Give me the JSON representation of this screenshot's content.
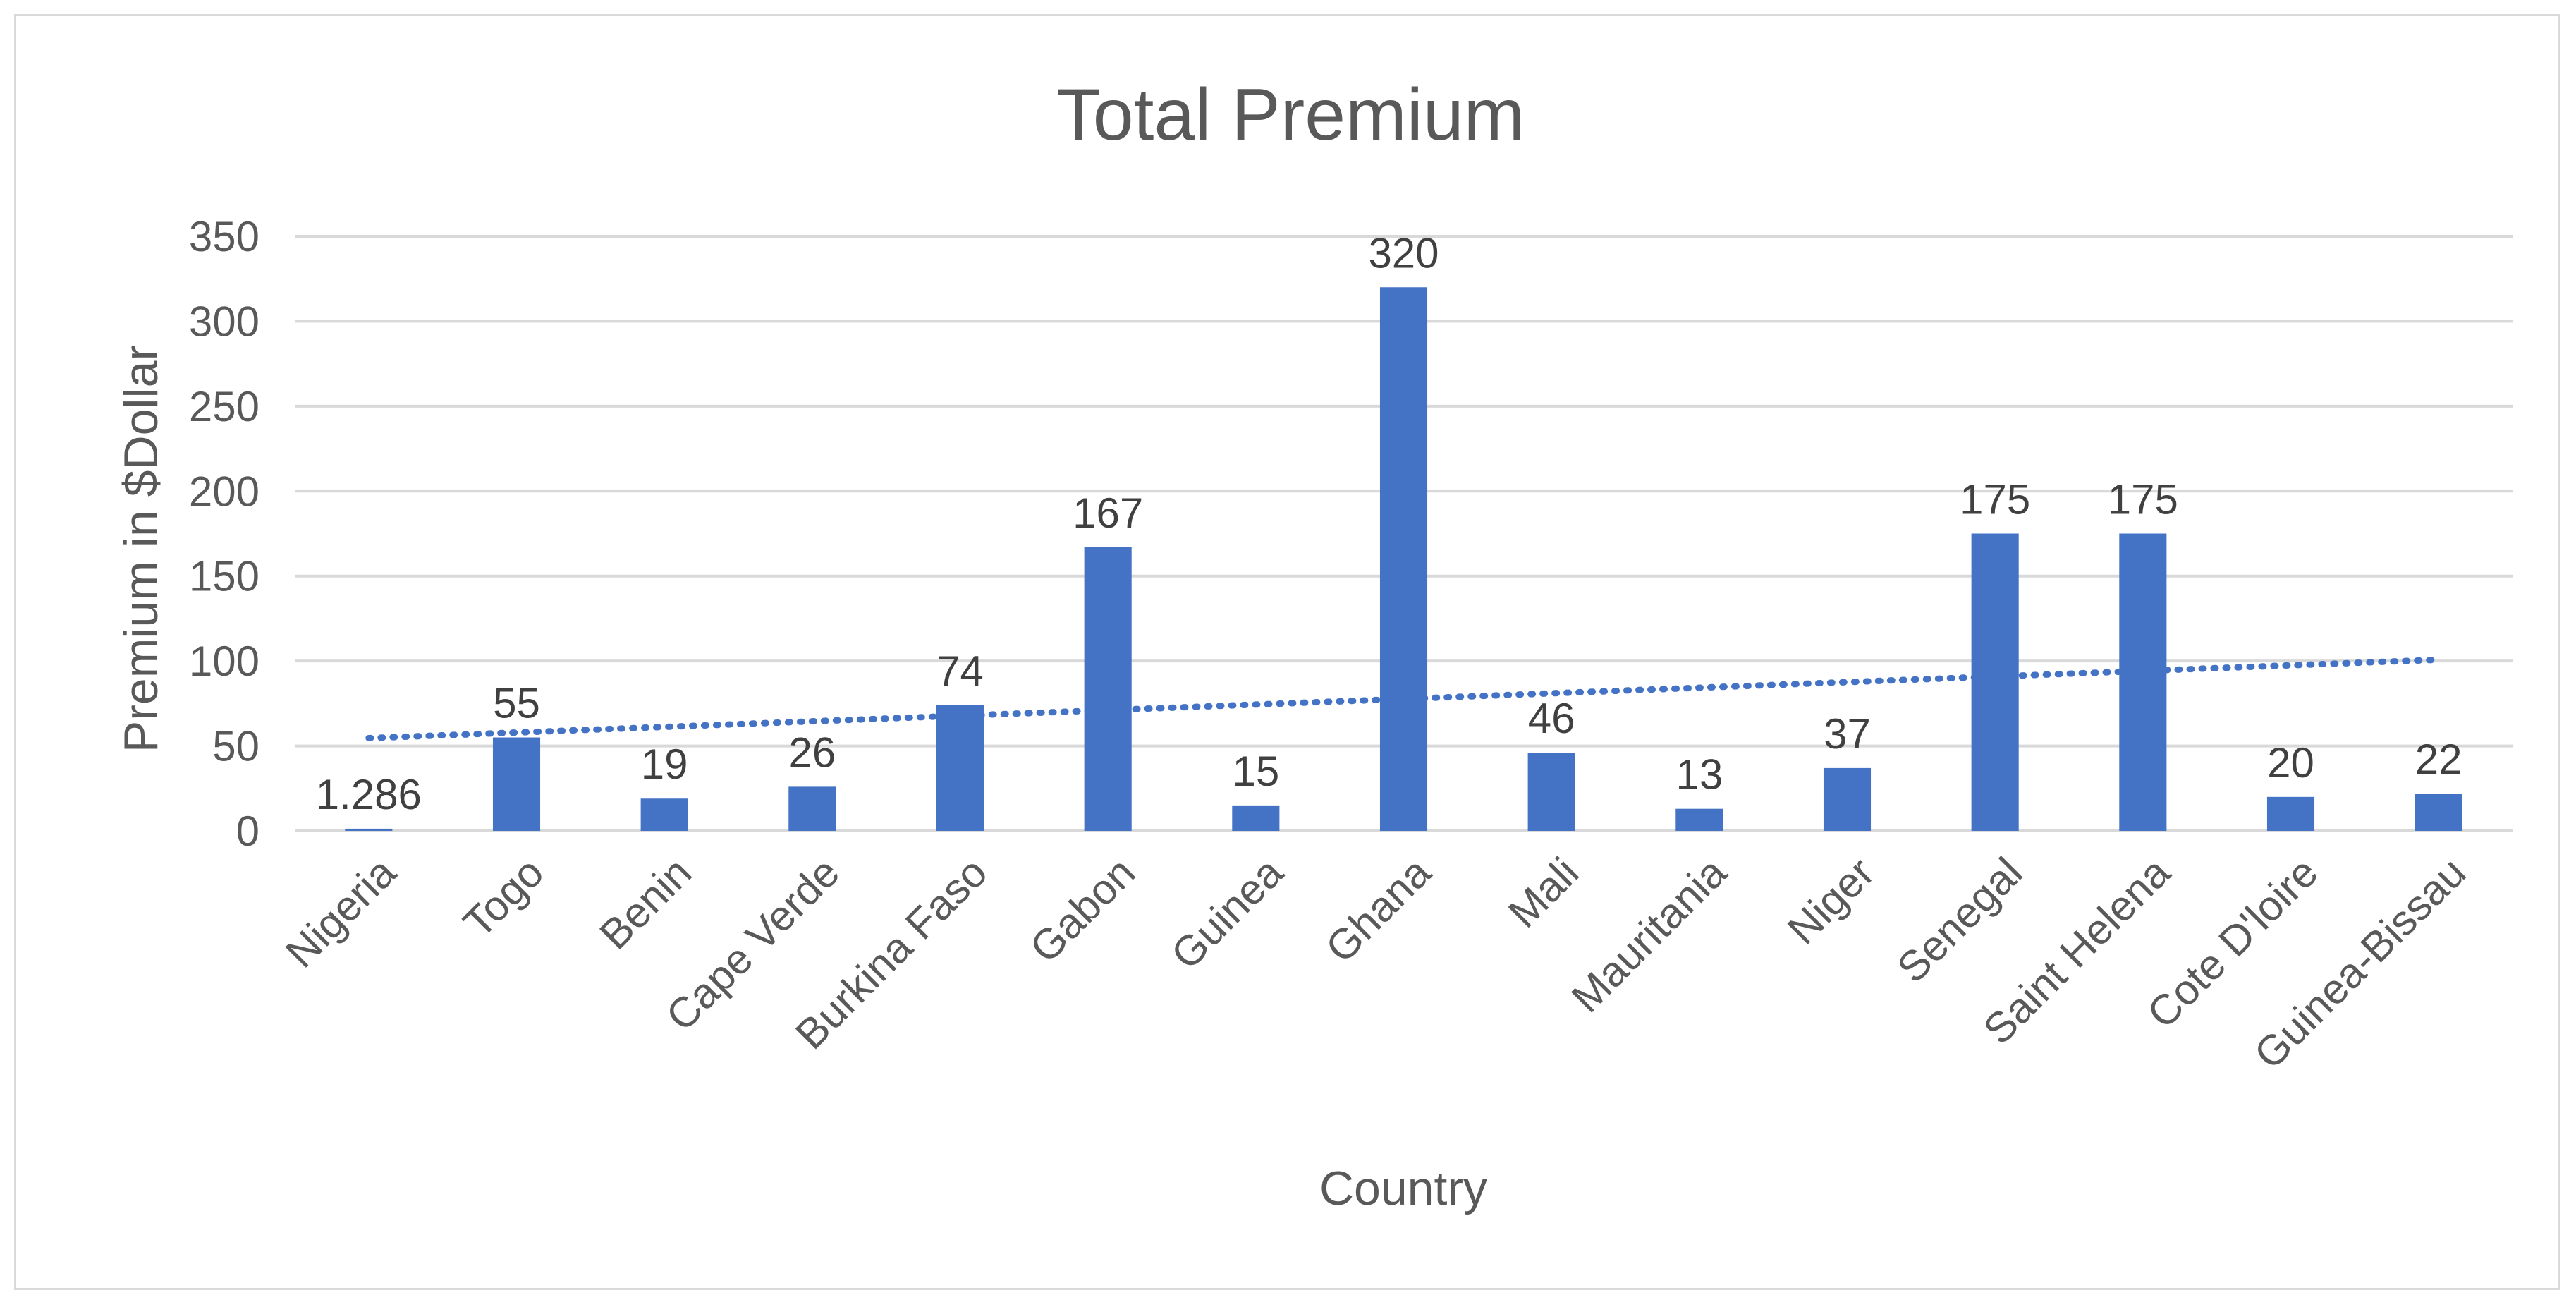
{
  "chart_data": {
    "type": "bar",
    "title": "Total Premium",
    "xlabel": "Country",
    "ylabel": "Premium in $Dollar",
    "categories": [
      "Nigeria",
      "Togo",
      "Benin",
      "Cape Verde",
      "Burkina Faso",
      "Gabon",
      "Guinea",
      "Ghana",
      "Mali",
      "Mauritania",
      "Niger",
      "Senegal",
      "Saint Helena",
      "Cote D'loire",
      "Guinea-Bissau"
    ],
    "values": [
      1.286,
      55,
      19,
      26,
      74,
      167,
      15,
      320,
      46,
      13,
      37,
      175,
      175,
      20,
      22
    ],
    "data_labels": [
      "1.286",
      "55",
      "19",
      "26",
      "74",
      "167",
      "15",
      "320",
      "46",
      "13",
      "37",
      "175",
      "175",
      "20",
      "22"
    ],
    "ylim": [
      0,
      350
    ],
    "yticks": [
      0,
      50,
      100,
      150,
      200,
      250,
      300,
      350
    ],
    "grid": true,
    "legend": "none",
    "bar_color": "#4472c4",
    "trendline": {
      "type": "linear",
      "color": "#4472c4",
      "style": "dotted"
    }
  }
}
